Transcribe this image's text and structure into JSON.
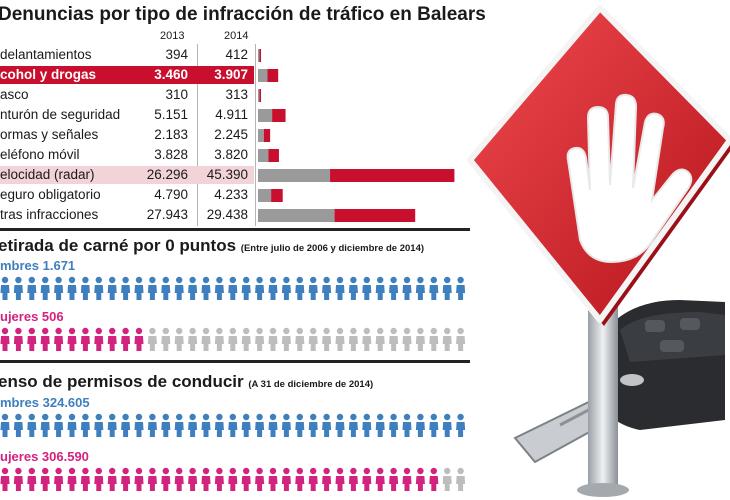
{
  "chart_data": [
    {
      "type": "bar",
      "title": "Denuncias por tipo de infracción de tráfico en Balears",
      "years": [
        "2013",
        "2014"
      ],
      "categories": [
        "Adelantamientos",
        "Alcohol y drogas",
        "Casco",
        "Cinturón de seguridad",
        "Normas y señales",
        "Teléfono móvil",
        "Velocidad (radar)",
        "Seguro obligatorio",
        "Otras infracciones"
      ],
      "visible_labels": [
        "delantamientos",
        "cohol y drogas",
        "asco",
        "nturón de seguridad",
        "ormas y señales",
        "eléfono móvil",
        "elocidad (radar)",
        "eguro obligatorio",
        "tras infracciones"
      ],
      "values_text": [
        [
          "394",
          "412"
        ],
        [
          "3.460",
          "3.907"
        ],
        [
          "310",
          "313"
        ],
        [
          "5.151",
          "4.911"
        ],
        [
          "2.183",
          "2.245"
        ],
        [
          "3.828",
          "3.820"
        ],
        [
          "26.296",
          "45.390"
        ],
        [
          "4.790",
          "4.233"
        ],
        [
          "27.943",
          "29.438"
        ]
      ],
      "series": [
        {
          "name": "2013",
          "values": [
            394,
            3460,
            310,
            5151,
            2183,
            3828,
            26296,
            4790,
            27943
          ]
        },
        {
          "name": "2014",
          "values": [
            412,
            3907,
            313,
            4911,
            2245,
            3820,
            45390,
            4233,
            29438
          ]
        }
      ],
      "highlight_index": 1,
      "soft_highlight_index": 6,
      "colors": {
        "2013": "#9a9a9a",
        "2014": "#c8102e"
      }
    },
    {
      "type": "pictogram",
      "title": "etirada de carné por 0 puntos",
      "subtitle": "(Entre julio de 2006 y diciembre de 2014)",
      "groups": [
        {
          "label": "mbres 1.671",
          "value": 1671,
          "color": "#3e7fbf"
        },
        {
          "label": "ujeres 506",
          "value": 506,
          "color": "#d2237f"
        }
      ]
    },
    {
      "type": "pictogram",
      "title": "enso de permisos de conducir",
      "subtitle": "(A 31 de diciembre de 2014)",
      "groups": [
        {
          "label": "mbres 324.605",
          "value": 324605,
          "color": "#3e7fbf"
        },
        {
          "label": "ujeres 306.590",
          "value": 306590,
          "color": "#d2237f"
        }
      ]
    }
  ],
  "colors": {
    "men": "#3e7fbf",
    "women": "#d2237f",
    "empty": "#bdbdbd",
    "sign": "#d0202a"
  },
  "icons": [
    "stop-sign-hand-icon",
    "car-key-icon",
    "person-icon"
  ]
}
